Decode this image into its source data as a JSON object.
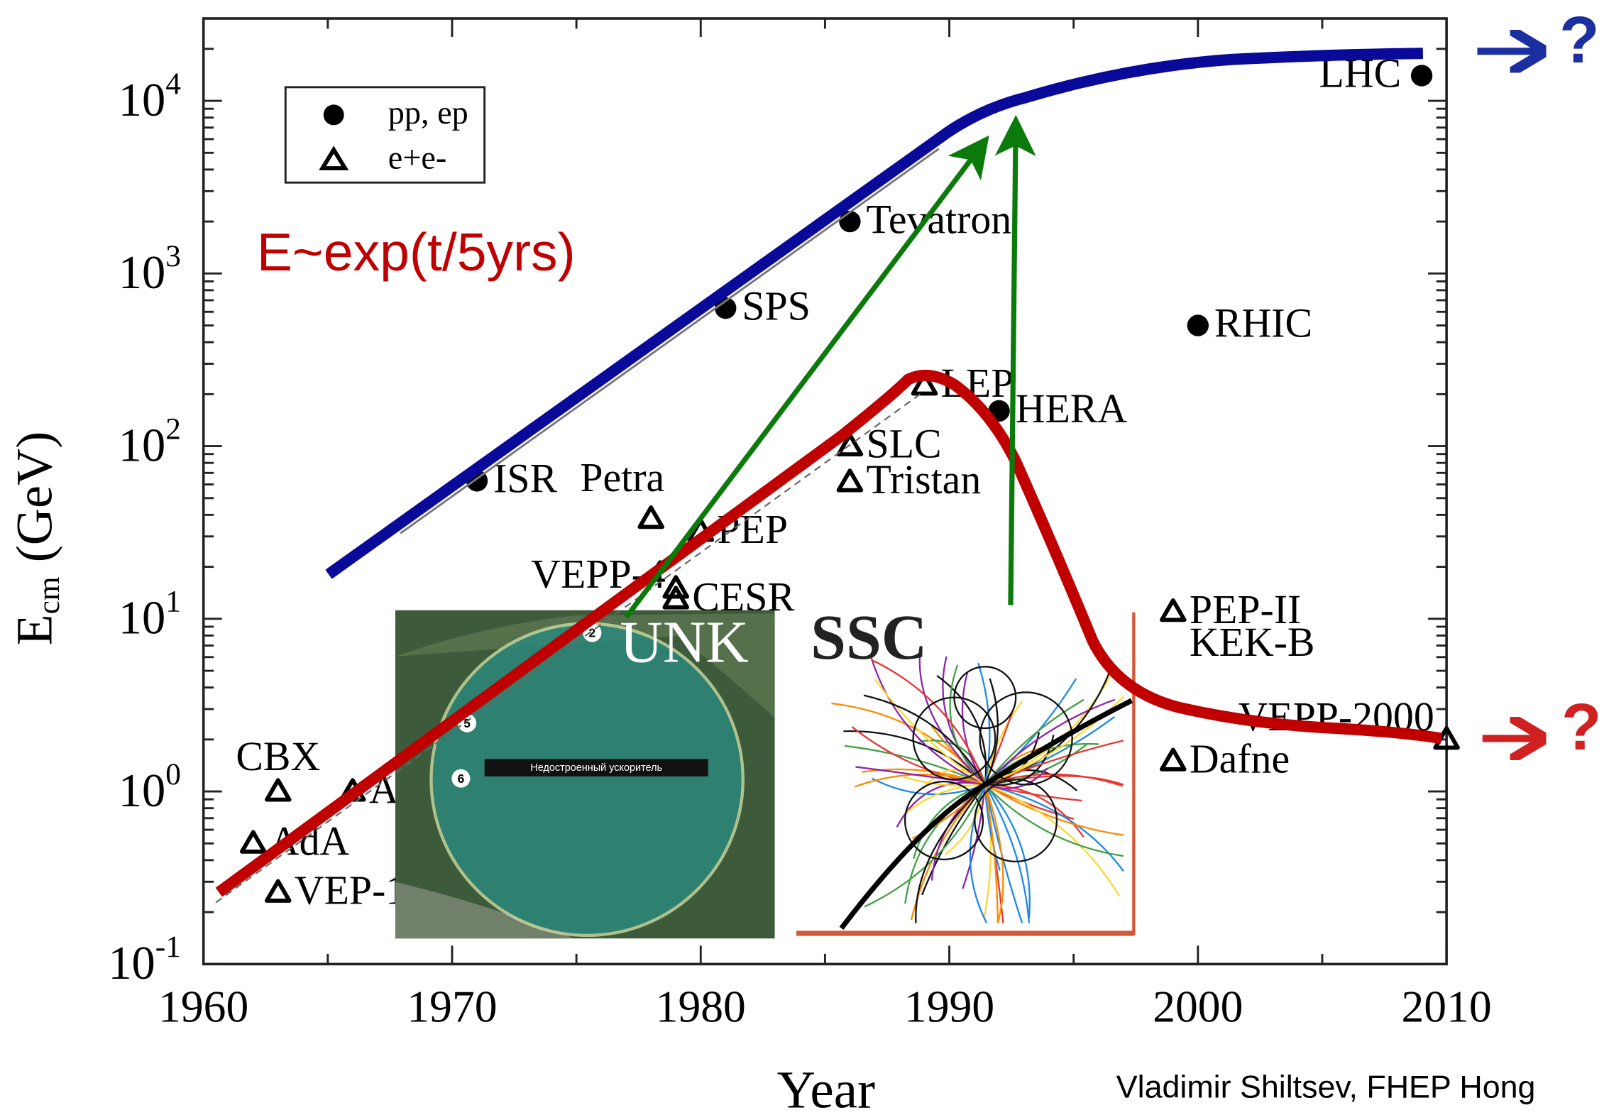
{
  "chart_data": {
    "type": "scatter",
    "y_scale": "log",
    "x_label": "Year",
    "y_label": {
      "symbol": "E",
      "subscript": "cm",
      "unit": "(GeV)"
    },
    "xlim": [
      1960,
      2010
    ],
    "xticks": [
      1960,
      1970,
      1980,
      1990,
      2000,
      2010
    ],
    "ylim": [
      0.1,
      30000
    ],
    "yticks": [
      {
        "value": 0.1,
        "base": "10",
        "exponent": "-1"
      },
      {
        "value": 1,
        "base": "10",
        "exponent": "0"
      },
      {
        "value": 10,
        "base": "10",
        "exponent": "1"
      },
      {
        "value": 100,
        "base": "10",
        "exponent": "2"
      },
      {
        "value": 1000,
        "base": "10",
        "exponent": "3"
      },
      {
        "value": 10000,
        "base": "10",
        "exponent": "4"
      }
    ],
    "series": [
      {
        "name": "pp, ep",
        "marker": "circle",
        "color": "#000000",
        "x": [
          1971,
          1981,
          1986,
          1992,
          2000,
          2009
        ],
        "values": [
          63,
          630,
          2000,
          160,
          500,
          14000
        ],
        "labels": [
          "ISR",
          "SPS",
          "Tevatron",
          "HERA",
          "RHIC",
          "LHC"
        ]
      },
      {
        "name": "e+e-",
        "marker": "triangle",
        "color": "#000000",
        "x": [
          1962,
          1963,
          1963,
          1966,
          1978,
          1980,
          1979,
          1979,
          1986,
          1986,
          1989,
          1999,
          1999,
          2010
        ],
        "values": [
          0.5,
          1.0,
          0.26,
          1.0,
          38,
          32,
          15,
          13,
          100,
          62,
          225,
          11,
          1.5,
          2.0
        ],
        "labels": [
          "AdA",
          "CBX",
          "VEP-1",
          "A",
          "Petra",
          "PEP",
          "VEPP-4",
          "CESR",
          "SLC",
          "Tristan",
          "LEP",
          "PEP-II",
          "Dafne",
          "VEPP-2000"
        ]
      }
    ],
    "annotations": {
      "trend": "E~exp(t/5yrs)",
      "second_label": "KEK-B",
      "unk": "UNK",
      "unk_caption": "Недостроенный ускоритель",
      "unk_markers": [
        "2",
        "5",
        "6"
      ],
      "ssc": "SSC",
      "question_top": "?",
      "question_bottom": "?",
      "credit": "Vladimir Shiltsev, FHEP Hong"
    }
  }
}
